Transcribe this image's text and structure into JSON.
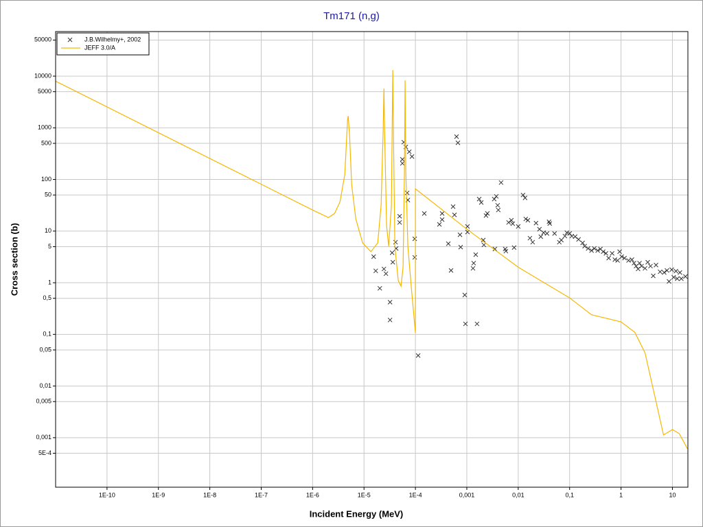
{
  "chart_data": {
    "type": "line",
    "title": "Tm171 (n,g)",
    "x_label": "Incident Energy (MeV)",
    "y_label": "Cross section (b)",
    "x_log": true,
    "y_log": true,
    "grid": true,
    "legend": "upper left",
    "xlim": [
      1e-11,
      20
    ],
    "ylim": [
      0.00011,
      73000
    ],
    "xticks": [
      {
        "value": 1e-10,
        "label": "1E-10"
      },
      {
        "value": 1e-09,
        "label": "1E-9"
      },
      {
        "value": 1e-08,
        "label": "1E-8"
      },
      {
        "value": 1e-07,
        "label": "1E-7"
      },
      {
        "value": 1e-06,
        "label": "1E-6"
      },
      {
        "value": 1e-05,
        "label": "1E-5"
      },
      {
        "value": 0.0001,
        "label": "1E-4"
      },
      {
        "value": 0.001,
        "label": "0,001"
      },
      {
        "value": 0.01,
        "label": "0,01"
      },
      {
        "value": 0.1,
        "label": "0,1"
      },
      1,
      10
    ],
    "yticks": [
      50000,
      10000,
      5000,
      1000,
      500,
      100,
      50,
      10,
      5,
      1,
      {
        "value": 0.5,
        "label": "0,5"
      },
      {
        "value": 0.1,
        "label": "0,1"
      },
      {
        "value": 0.05,
        "label": "0,05"
      },
      {
        "value": 0.01,
        "label": "0,01"
      },
      {
        "value": 0.005,
        "label": "0,005"
      },
      {
        "value": 0.001,
        "label": "0,001"
      },
      {
        "value": 0.0005,
        "label": "5E-4"
      }
    ],
    "series": [
      {
        "name": "J.B.Wilhelmy+, 2002",
        "type": "scatter",
        "color": "#333333",
        "x": [
          1.54e-05,
          1.69e-05,
          2.03e-05,
          2.44e-05,
          2.67e-05,
          3.21e-05,
          3.21e-05,
          3.52e-05,
          3.63e-05,
          4.1e-05,
          4.23e-05,
          4.93e-05,
          4.93e-05,
          5.58e-05,
          5.58e-05,
          5.93e-05,
          6.5e-05,
          6.92e-05,
          7.13e-05,
          7.59e-05,
          8.57e-05,
          9.7e-05,
          9.7e-05,
          0.000113,
          0.000149,
          0.000293,
          0.000331,
          0.000331,
          0.000437,
          0.000493,
          0.000541,
          0.000575,
          0.000631,
          0.000671,
          0.000736,
          0.000759,
          0.000912,
          0.00094,
          0.00103,
          0.00103,
          0.00132,
          0.00136,
          0.00149,
          0.00158,
          0.00174,
          0.00191,
          0.00209,
          0.00215,
          0.00236,
          0.00251,
          0.00341,
          0.00352,
          0.00375,
          0.00398,
          0.0041,
          0.00464,
          0.00558,
          0.00575,
          0.0065,
          0.00736,
          0.00782,
          0.00832,
          0.01,
          0.0124,
          0.0136,
          0.014,
          0.0154,
          0.0169,
          0.0191,
          0.0222,
          0.0259,
          0.0275,
          0.0311,
          0.0363,
          0.0398,
          0.041,
          0.0509,
          0.063,
          0.069,
          0.081,
          0.0885,
          0.1,
          0.11,
          0.128,
          0.149,
          0.179,
          0.196,
          0.229,
          0.267,
          0.302,
          0.352,
          0.398,
          0.45,
          0.509,
          0.575,
          0.671,
          0.759,
          0.858,
          0.94,
          1.03,
          1.17,
          1.4,
          1.63,
          1.79,
          1.96,
          2.15,
          2.29,
          2.51,
          2.93,
          3.31,
          3.74,
          4.24,
          4.79,
          5.75,
          6.92,
          7.82,
          8.58,
          9.7,
          10.6,
          11.7,
          12.4,
          14,
          14.9,
          17.9
        ],
        "y": [
          3.2,
          1.7,
          0.78,
          1.85,
          1.5,
          0.42,
          0.19,
          3.8,
          2.5,
          6.1,
          4.6,
          19.4,
          14.7,
          205,
          245,
          527,
          426,
          55,
          40,
          344,
          278,
          7.1,
          3.1,
          0.039,
          21.9,
          13.5,
          16.7,
          21.9,
          5.7,
          1.73,
          29.8,
          20.6,
          674,
          512,
          8.5,
          4.9,
          0.58,
          0.16,
          12.3,
          9.6,
          1.9,
          2.4,
          3.5,
          0.16,
          41.7,
          35.8,
          6.7,
          5.4,
          20,
          22,
          41.7,
          4.5,
          47,
          31.6,
          25.6,
          87,
          4.5,
          4.1,
          14.7,
          16.2,
          13.9,
          4.8,
          12.3,
          50,
          44,
          17.2,
          16.2,
          7.3,
          6.1,
          14.3,
          10.9,
          7.8,
          9.3,
          9,
          15.2,
          14,
          9,
          6.1,
          6.7,
          8,
          9.3,
          9,
          8,
          7.8,
          6.9,
          5.9,
          5.1,
          4.6,
          4.2,
          4.6,
          4.2,
          4.5,
          4,
          3.7,
          3,
          3.7,
          2.8,
          2.7,
          4,
          3.2,
          3,
          2.7,
          2.8,
          2.4,
          2.1,
          1.85,
          2.4,
          2.1,
          1.9,
          2.5,
          2.1,
          1.36,
          2.2,
          1.63,
          1.58,
          1.73,
          1.06,
          1.79,
          1.28,
          1.68,
          1.2,
          1.58,
          1.2,
          1.32
        ]
      },
      {
        "name": "JEFF 3.0/A",
        "type": "line",
        "color": "#f5b800",
        "x": [
          1e-11,
          1e-06,
          2.03e-06,
          2.67e-06,
          3.41e-06,
          4.23e-06,
          4.79e-06,
          4.93e-06,
          5.25e-06,
          5.75e-06,
          6.92e-06,
          9.4e-06,
          1.36e-05,
          1.85e-05,
          2.15e-05,
          2.36e-05,
          2.44e-05,
          2.51e-05,
          2.75e-05,
          3.02e-05,
          3.41e-05,
          3.52e-05,
          3.63e-05,
          3.75e-05,
          3.98e-05,
          4.64e-05,
          5.25e-05,
          5.75e-05,
          6.12e-05,
          6.3e-05,
          6.5e-05,
          7.13e-05,
          8.32e-05,
          0.0001,
          0.0001,
          0.001,
          0.01,
          0.1,
          0.267,
          1,
          1.85,
          2.93,
          6.71,
          10,
          13.6,
          19.6
        ],
        "y": [
          8000,
          25.6,
          18.3,
          21.9,
          36.9,
          125,
          1450,
          1690,
          674,
          79,
          17.2,
          5.9,
          4,
          5.9,
          31.6,
          915,
          5730,
          915,
          12.7,
          5.1,
          31.6,
          674,
          13100,
          674,
          5.1,
          1.1,
          0.86,
          2,
          146,
          8280,
          146,
          5.1,
          0.81,
          0.107,
          66,
          10.9,
          2,
          0.51,
          0.24,
          0.175,
          0.11,
          0.044,
          0.00113,
          0.00144,
          0.0012,
          0.00061
        ]
      }
    ]
  }
}
